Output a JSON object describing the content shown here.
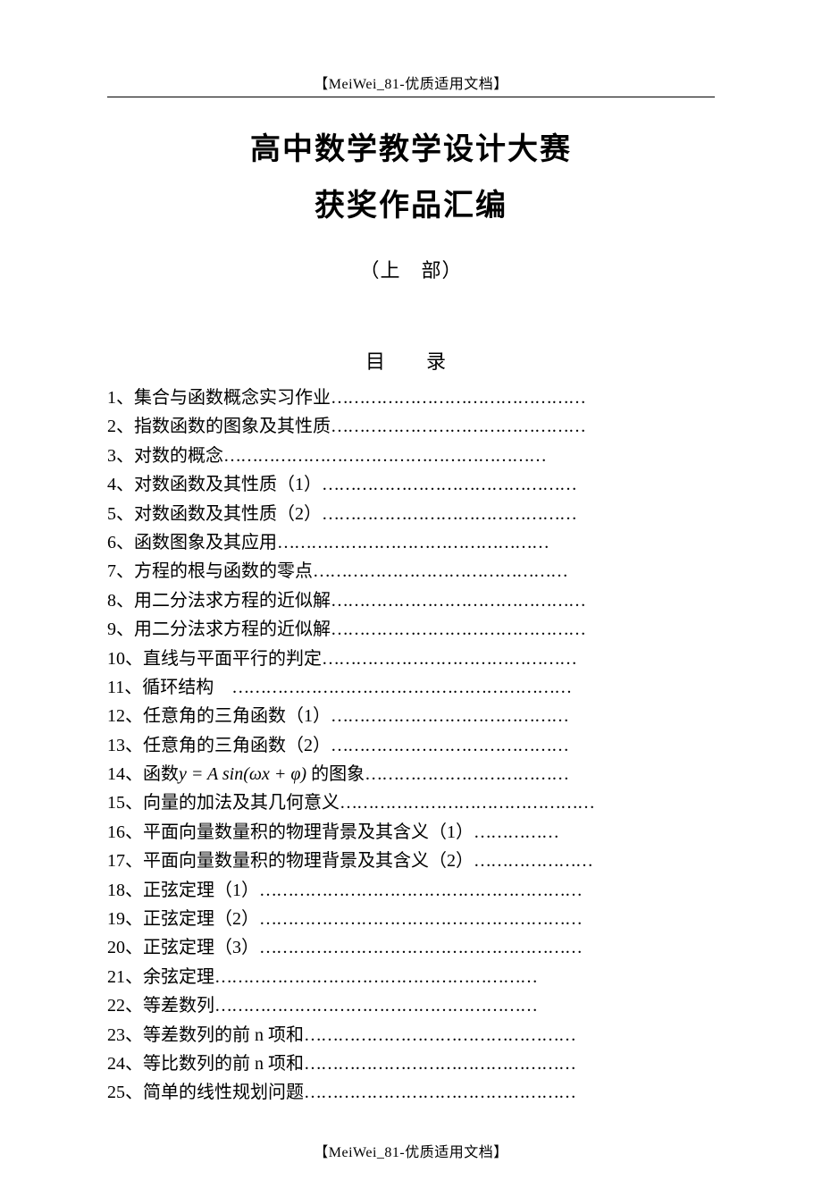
{
  "header": "【MeiWei_81-优质适用文档】",
  "footer": "【MeiWei_81-优质适用文档】",
  "title_main": "高中数学教学设计大赛",
  "title_sub": "获奖作品汇编",
  "part_label": "（上　部）",
  "toc_title": "目　录",
  "font": {
    "heading_family": "SimHei",
    "body_family": "SimSun",
    "heading_size_pt": 26,
    "body_size_pt": 15,
    "header_size_pt": 12
  },
  "colors": {
    "text": "#000000",
    "background": "#ffffff",
    "rule": "#000000"
  },
  "toc": [
    {
      "n": "1",
      "label": "集合与函数概念实习作业",
      "dots": "………………………………………"
    },
    {
      "n": "2",
      "label": "指数函数的图象及其性质",
      "dots": "………………………………………"
    },
    {
      "n": "3",
      "label": "对数的概念",
      "dots": "…………………………………………………"
    },
    {
      "n": "4",
      "label": "对数函数及其性质（1）",
      "dots": "………………………………………"
    },
    {
      "n": "5",
      "label": "对数函数及其性质（2）",
      "dots": "………………………………………"
    },
    {
      "n": "6",
      "label": "函数图象及其应用",
      "dots": "…………………………………………"
    },
    {
      "n": "7",
      "label": "方程的根与函数的零点",
      "dots": "………………………………………"
    },
    {
      "n": "8",
      "label": "用二分法求方程的近似解",
      "dots": "………………………………………"
    },
    {
      "n": "9",
      "label": "用二分法求方程的近似解",
      "dots": "………………………………………"
    },
    {
      "n": "10",
      "label": "直线与平面平行的判定",
      "dots": "………………………………………"
    },
    {
      "n": "11",
      "label": "循环结构　",
      "dots": "……………………………………………………"
    },
    {
      "n": "12",
      "label": "任意角的三角函数（1）",
      "dots": "……………………………………"
    },
    {
      "n": "13",
      "label": "任意角的三角函数（2）",
      "dots": "……………………………………"
    },
    {
      "n": "14",
      "label": "函数 y = A sin(ωx + φ) 的图象",
      "dots": "………………………………",
      "formula": {
        "prefix": "函数",
        "expr": "y = A sin(ωx + φ)",
        "suffix": " 的图象"
      }
    },
    {
      "n": "15",
      "label": "向量的加法及其几何意义",
      "dots": "………………………………………"
    },
    {
      "n": "16",
      "label": "平面向量数量积的物理背景及其含义（1）",
      "dots": "……………"
    },
    {
      "n": "17",
      "label": "平面向量数量积的物理背景及其含义（2）",
      "dots": "…………………"
    },
    {
      "n": "18",
      "label": "正弦定理（1）",
      "dots": "…………………………………………………"
    },
    {
      "n": "19",
      "label": "正弦定理（2）",
      "dots": "…………………………………………………"
    },
    {
      "n": "20",
      "label": "正弦定理（3）",
      "dots": "…………………………………………………"
    },
    {
      "n": "21",
      "label": "余弦定理",
      "dots": "…………………………………………………"
    },
    {
      "n": "22",
      "label": "等差数列",
      "dots": "…………………………………………………"
    },
    {
      "n": "23",
      "label": "等差数列的前 n 项和",
      "dots": "…………………………………………"
    },
    {
      "n": "24",
      "label": "等比数列的前 n 项和",
      "dots": "…………………………………………"
    },
    {
      "n": "25",
      "label": "简单的线性规划问题",
      "dots": "…………………………………………"
    }
  ]
}
